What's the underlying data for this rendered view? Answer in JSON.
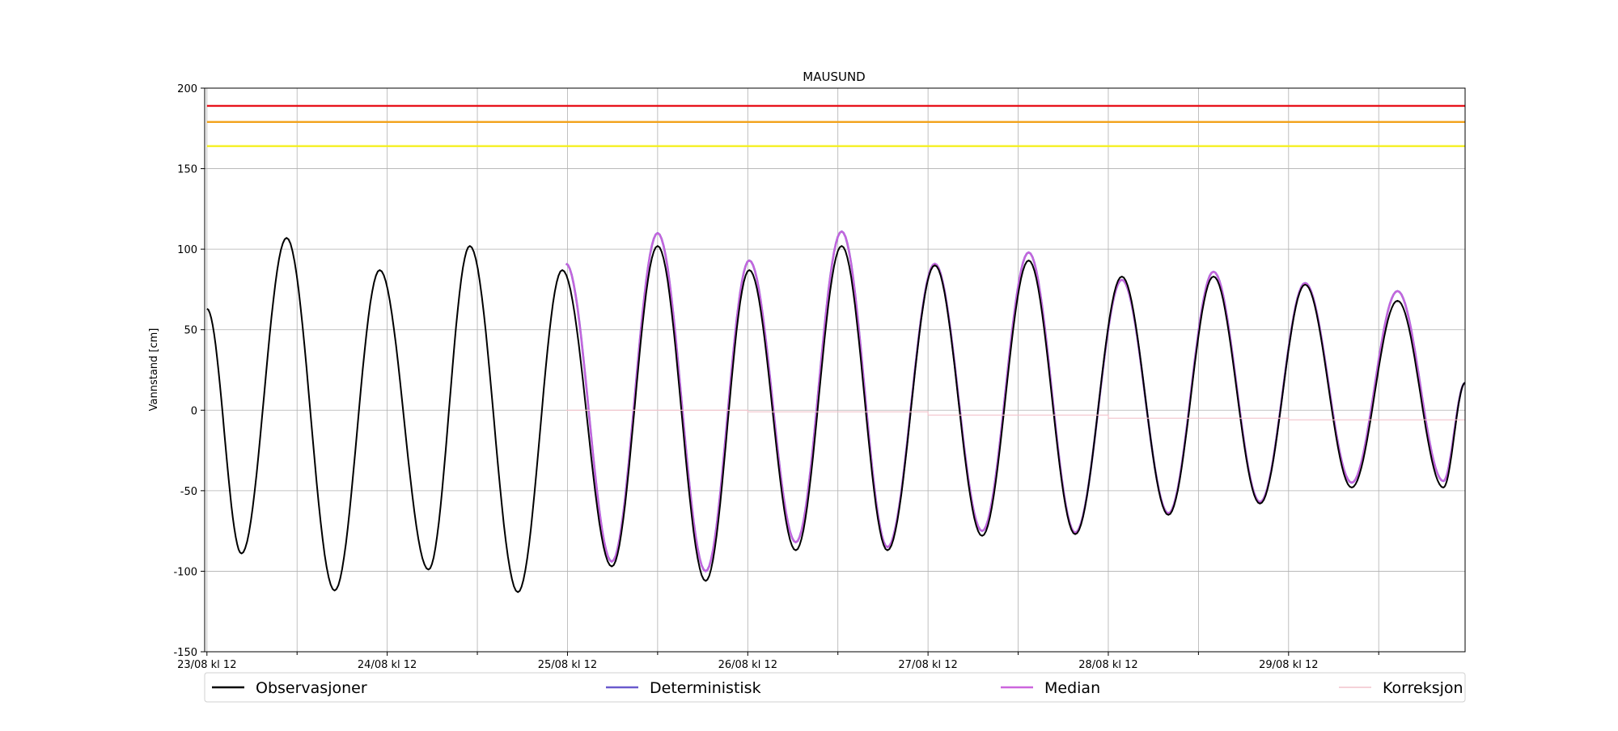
{
  "chart_data": {
    "type": "line",
    "title": "MAUSUND",
    "xlabel": "",
    "ylabel": "Vannstand [cm]",
    "x_unit": "hours since 23/08 kl 12",
    "xlim": [
      -0.3,
      167.5
    ],
    "ylim": [
      -150,
      200
    ],
    "yticks": [
      -150,
      -100,
      -50,
      0,
      50,
      100,
      150,
      200
    ],
    "xticks_major": [
      {
        "x": 0,
        "label": "23/08 kl 12"
      },
      {
        "x": 24,
        "label": "24/08 kl 12"
      },
      {
        "x": 48,
        "label": "25/08 kl 12"
      },
      {
        "x": 72,
        "label": "26/08 kl 12"
      },
      {
        "x": 96,
        "label": "27/08 kl 12"
      },
      {
        "x": 120,
        "label": "28/08 kl 12"
      },
      {
        "x": 144,
        "label": "29/08 kl 12"
      }
    ],
    "xticks_minor": [
      12,
      36,
      60,
      84,
      108,
      132,
      156
    ],
    "grid": true,
    "legend_position": "bottom",
    "thresholds": [
      {
        "y": 189,
        "color": "#e8141c"
      },
      {
        "y": 179,
        "color": "#f2a21b"
      },
      {
        "y": 164,
        "color": "#f5f020"
      }
    ],
    "series": [
      {
        "name": "Deterministisk",
        "color": "#6a5acd",
        "x": [
          47.8,
          53.9,
          60.0,
          66.4,
          72.2,
          78.4,
          84.5,
          90.6,
          96.9,
          103.2,
          109.4,
          115.6,
          121.8,
          128.0,
          134.0,
          140.2,
          146.2,
          152.4,
          158.5,
          164.6,
          167.5
        ],
        "y": [
          91,
          -94,
          110,
          -100,
          93,
          -82,
          111,
          -85,
          91,
          -75,
          98,
          -76,
          81,
          -64,
          86,
          -57,
          79,
          -45,
          74,
          -44,
          17
        ]
      },
      {
        "name": "Median",
        "color": "#cc66dd",
        "x": [
          47.8,
          53.9,
          60.0,
          66.4,
          72.2,
          78.4,
          84.5,
          90.6,
          96.9,
          103.2,
          109.4,
          115.6,
          121.8,
          128.0,
          134.0,
          140.2,
          146.2,
          152.4,
          158.5,
          164.6,
          167.5
        ],
        "y": [
          91,
          -94,
          110,
          -100,
          93,
          -82,
          111,
          -85,
          91,
          -75,
          98,
          -76,
          81,
          -64,
          86,
          -57,
          79,
          -45,
          74,
          -44,
          17
        ]
      },
      {
        "name": "Observasjoner",
        "color": "#000000",
        "x": [
          0,
          4.6,
          10.6,
          17.0,
          23.0,
          29.5,
          35.0,
          41.4,
          47.3,
          53.9,
          60.0,
          66.4,
          72.2,
          78.4,
          84.5,
          90.6,
          96.9,
          103.2,
          109.4,
          115.6,
          121.8,
          128.0,
          134.0,
          140.2,
          146.2,
          152.4,
          158.5,
          164.6,
          167.5
        ],
        "y": [
          63,
          -89,
          107,
          -112,
          87,
          -99,
          102,
          -113,
          87,
          -97,
          102,
          -106,
          87,
          -87,
          102,
          -87,
          90,
          -78,
          93,
          -77,
          83,
          -65,
          83,
          -58,
          78,
          -48,
          68,
          -48,
          17
        ]
      },
      {
        "name": "Korreksjon",
        "color": "#f2c4cc",
        "steps": [
          {
            "x0": 47.8,
            "x1": 72.0,
            "y": 0
          },
          {
            "x0": 72.0,
            "x1": 96.0,
            "y": -1
          },
          {
            "x0": 96.0,
            "x1": 120.0,
            "y": -3
          },
          {
            "x0": 120.0,
            "x1": 144.0,
            "y": -5
          },
          {
            "x0": 144.0,
            "x1": 167.5,
            "y": -6
          }
        ]
      }
    ],
    "legend": [
      {
        "name": "Observasjoner",
        "color": "#000000"
      },
      {
        "name": "Deterministisk",
        "color": "#6a5acd"
      },
      {
        "name": "Median",
        "color": "#cc66dd"
      },
      {
        "name": "Korreksjon",
        "color": "#f2c4cc"
      }
    ]
  }
}
